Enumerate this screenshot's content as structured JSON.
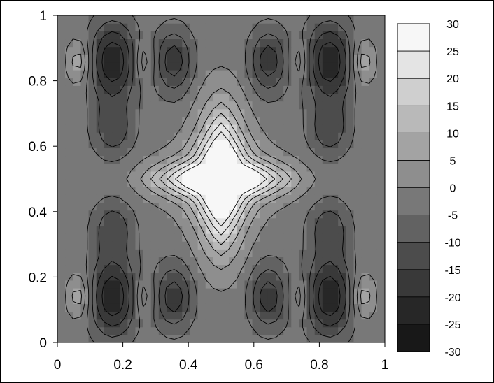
{
  "chart_data": {
    "type": "heatmap",
    "title": "",
    "xlabel": "",
    "ylabel": "",
    "xlim": [
      0,
      1
    ],
    "ylim": [
      0,
      1
    ],
    "x_ticks": [
      "0",
      "0.2",
      "0.4",
      "0.6",
      "0.8",
      "1"
    ],
    "y_ticks": [
      "0",
      "0.2",
      "0.4",
      "0.6",
      "0.8",
      "1"
    ],
    "colorbar": {
      "min": -30,
      "max": 30,
      "step": 5,
      "tick_labels": [
        "30",
        "25",
        "20",
        "15",
        "10",
        "5",
        "0",
        "-5",
        "-10",
        "-15",
        "-20",
        "-25",
        "-30"
      ],
      "colors": [
        "#f7f7f7",
        "#e4e4e4",
        "#cfcfcf",
        "#b9b9b9",
        "#a3a3a3",
        "#8e8e8e",
        "#787878",
        "#626262",
        "#4c4c4c",
        "#393939",
        "#272727",
        "#181818"
      ]
    },
    "field": {
      "grid": [
        43,
        43
      ],
      "background": -2,
      "features": [
        {
          "kind": "center_peak",
          "x": 0.5,
          "y": 0.5,
          "value": 29
        },
        {
          "kind": "cross_ridge",
          "value": 13
        },
        {
          "kind": "well",
          "x": 0.17,
          "y": 0.86,
          "value": -30
        },
        {
          "kind": "well",
          "x": 0.83,
          "y": 0.86,
          "value": -30
        },
        {
          "kind": "well",
          "x": 0.17,
          "y": 0.14,
          "value": -30
        },
        {
          "kind": "well",
          "x": 0.83,
          "y": 0.14,
          "value": -30
        },
        {
          "kind": "well",
          "x": 0.355,
          "y": 0.86,
          "value": -22
        },
        {
          "kind": "well",
          "x": 0.645,
          "y": 0.86,
          "value": -22
        },
        {
          "kind": "well",
          "x": 0.355,
          "y": 0.14,
          "value": -22
        },
        {
          "kind": "well",
          "x": 0.645,
          "y": 0.14,
          "value": -22
        },
        {
          "kind": "well",
          "x": 0.17,
          "y": 0.65,
          "value": -16
        },
        {
          "kind": "well",
          "x": 0.83,
          "y": 0.65,
          "value": -16
        },
        {
          "kind": "well",
          "x": 0.17,
          "y": 0.35,
          "value": -16
        },
        {
          "kind": "well",
          "x": 0.83,
          "y": 0.35,
          "value": -16
        },
        {
          "kind": "spot",
          "x": 0.065,
          "y": 0.86,
          "value": 10
        },
        {
          "kind": "spot",
          "x": 0.935,
          "y": 0.86,
          "value": 10
        },
        {
          "kind": "spot",
          "x": 0.065,
          "y": 0.14,
          "value": 10
        },
        {
          "kind": "spot",
          "x": 0.935,
          "y": 0.14,
          "value": 10
        },
        {
          "kind": "spot",
          "x": 0.265,
          "y": 0.86,
          "value": 7
        },
        {
          "kind": "spot",
          "x": 0.735,
          "y": 0.86,
          "value": 7
        },
        {
          "kind": "spot",
          "x": 0.265,
          "y": 0.14,
          "value": 7
        },
        {
          "kind": "spot",
          "x": 0.735,
          "y": 0.14,
          "value": 7
        }
      ]
    }
  }
}
